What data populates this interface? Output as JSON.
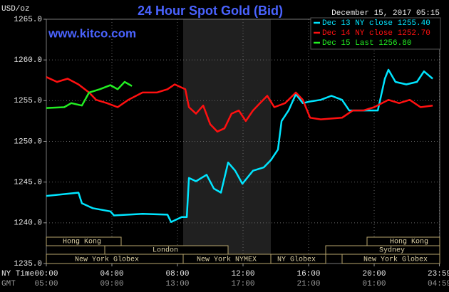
{
  "chart_data": {
    "type": "line",
    "title": "24 Hour Spot Gold (Bid)",
    "unit_label": "USD/oz",
    "site": "www.kitco.com",
    "timestamp": "December 15, 2017 05:15",
    "x_row_labels": [
      "NY Time",
      "GMT"
    ],
    "xlim": [
      0,
      24
    ],
    "xticks": [
      {
        "value": 0,
        "label": "00:00"
      },
      {
        "value": 4,
        "label": "04:00"
      },
      {
        "value": 8,
        "label": "08:00"
      },
      {
        "value": 12,
        "label": "12:00"
      },
      {
        "value": 16,
        "label": "16:00"
      },
      {
        "value": 20,
        "label": "20:00"
      },
      {
        "value": 23.98,
        "label": "23:59"
      }
    ],
    "gmt_labels": [
      "05:00",
      "09:00",
      "13:00",
      "17:00",
      "21:00",
      "01:00",
      "04:59"
    ],
    "ylim": [
      1235,
      1265
    ],
    "yticks": [
      {
        "value": 1235,
        "label": "1235.0"
      },
      {
        "value": 1240,
        "label": "1240.0"
      },
      {
        "value": 1245,
        "label": "1245.0"
      },
      {
        "value": 1250,
        "label": "1250.0"
      },
      {
        "value": 1255,
        "label": "1255.0"
      },
      {
        "value": 1260,
        "label": "1260.0"
      },
      {
        "value": 1265,
        "label": "1265.0"
      }
    ],
    "grid": true,
    "sessions": [
      "Hong Kong",
      "London",
      "New York Globex",
      "New York NYMEX",
      "NY Globex",
      "Sydney",
      "Hong Kong",
      "New York Globex"
    ],
    "series": [
      {
        "name": "Dec 13 NY close 1255.40",
        "color": "#00e5ff",
        "x": [
          0,
          1.96,
          2.17,
          2.83,
          3.91,
          4.13,
          5.87,
          7.39,
          7.61,
          8.26,
          8.57,
          8.7,
          9.13,
          9.78,
          10.22,
          10.65,
          11.09,
          11.52,
          11.96,
          12.61,
          13.26,
          13.7,
          14.13,
          14.35,
          14.78,
          15.22,
          15.65,
          16.09,
          16.74,
          17.39,
          18.04,
          18.48,
          19.35,
          20.22,
          20.65,
          20.87,
          21.3,
          21.96,
          22.61,
          23.04,
          23.57
        ],
        "values": [
          1243.3,
          1243.7,
          1242.4,
          1241.8,
          1241.4,
          1240.9,
          1241.1,
          1241.0,
          1240.1,
          1240.7,
          1240.7,
          1245.5,
          1245.1,
          1245.9,
          1244.2,
          1243.7,
          1247.4,
          1246.4,
          1244.8,
          1246.4,
          1246.8,
          1247.7,
          1249.0,
          1252.5,
          1253.8,
          1255.8,
          1254.7,
          1254.9,
          1255.1,
          1255.6,
          1255.1,
          1253.8,
          1253.8,
          1253.8,
          1257.7,
          1258.8,
          1257.3,
          1257.0,
          1257.3,
          1258.6,
          1257.7
        ]
      },
      {
        "name": "Dec 14 NY close 1252.70",
        "color": "#ff1010",
        "x": [
          0,
          0.65,
          1.3,
          1.96,
          2.61,
          3.04,
          3.7,
          4.35,
          5.0,
          5.87,
          6.74,
          7.39,
          7.83,
          8.48,
          8.7,
          9.13,
          9.57,
          10.0,
          10.43,
          10.87,
          11.3,
          11.74,
          12.17,
          12.61,
          13.04,
          13.48,
          13.91,
          14.57,
          15.22,
          15.65,
          16.09,
          16.74,
          18.04,
          18.7,
          19.35,
          20.0,
          20.87,
          21.52,
          22.17,
          22.83,
          23.57
        ],
        "values": [
          1257.9,
          1257.3,
          1257.7,
          1257.0,
          1256.0,
          1255.1,
          1254.7,
          1254.2,
          1255.1,
          1256.0,
          1256.0,
          1256.4,
          1257.0,
          1256.4,
          1254.2,
          1253.4,
          1254.4,
          1252.1,
          1251.2,
          1251.6,
          1253.4,
          1253.8,
          1252.5,
          1253.8,
          1254.7,
          1255.6,
          1254.2,
          1254.7,
          1256.0,
          1255.1,
          1252.9,
          1252.7,
          1252.9,
          1253.8,
          1253.8,
          1254.2,
          1255.1,
          1254.7,
          1255.1,
          1254.2,
          1254.4
        ]
      },
      {
        "name": "Dec 15 Last 1256.80",
        "color": "#22ee22",
        "x": [
          0,
          1.09,
          1.52,
          2.17,
          2.61,
          3.26,
          3.91,
          4.35,
          4.78,
          5.22
        ],
        "values": [
          1254.1,
          1254.2,
          1254.7,
          1254.4,
          1256.0,
          1256.4,
          1256.9,
          1256.4,
          1257.3,
          1256.8
        ]
      }
    ]
  }
}
